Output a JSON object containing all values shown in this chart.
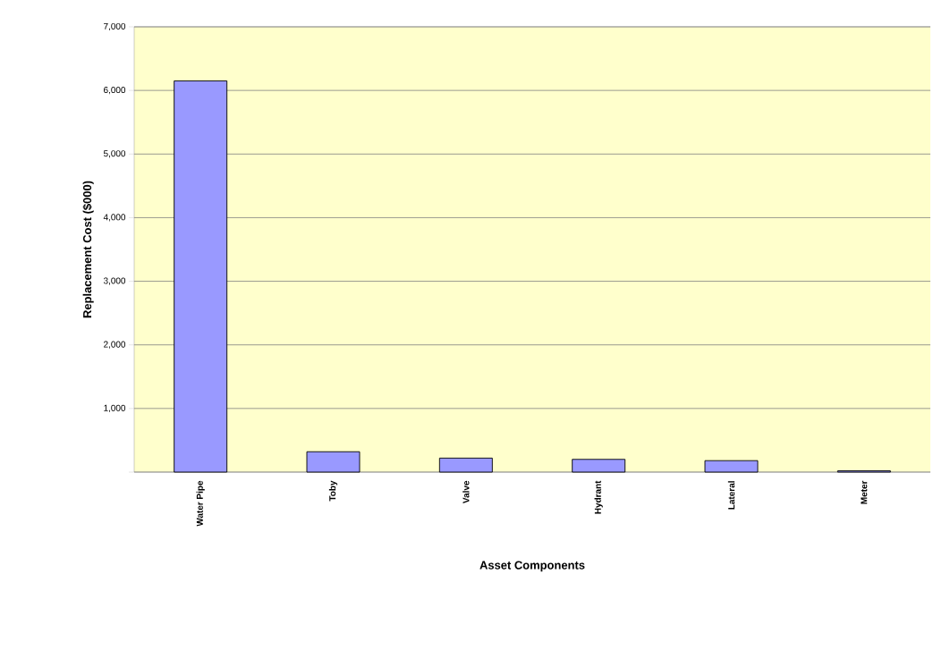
{
  "chart_data": {
    "type": "bar",
    "xlabel": "Asset Components",
    "ylabel": "Replacement Cost ($000)",
    "categories": [
      "Water Pipe",
      "Toby",
      "Valve",
      "Hydrant",
      "Lateral",
      "Meter"
    ],
    "values": [
      6150,
      320,
      220,
      200,
      180,
      20
    ],
    "color": "#9999ff",
    "ylim": [
      0,
      7000
    ],
    "yticks": [
      {
        "value": 0,
        "label": null
      },
      {
        "value": 1000,
        "label": "1,000"
      },
      {
        "value": 2000,
        "label": "2,000"
      },
      {
        "value": 3000,
        "label": "3,000"
      },
      {
        "value": 4000,
        "label": "4,000"
      },
      {
        "value": 5000,
        "label": "5,000"
      },
      {
        "value": 6000,
        "label": "6,000"
      },
      {
        "value": 7000,
        "label": "7,000"
      }
    ],
    "grid": "y"
  }
}
